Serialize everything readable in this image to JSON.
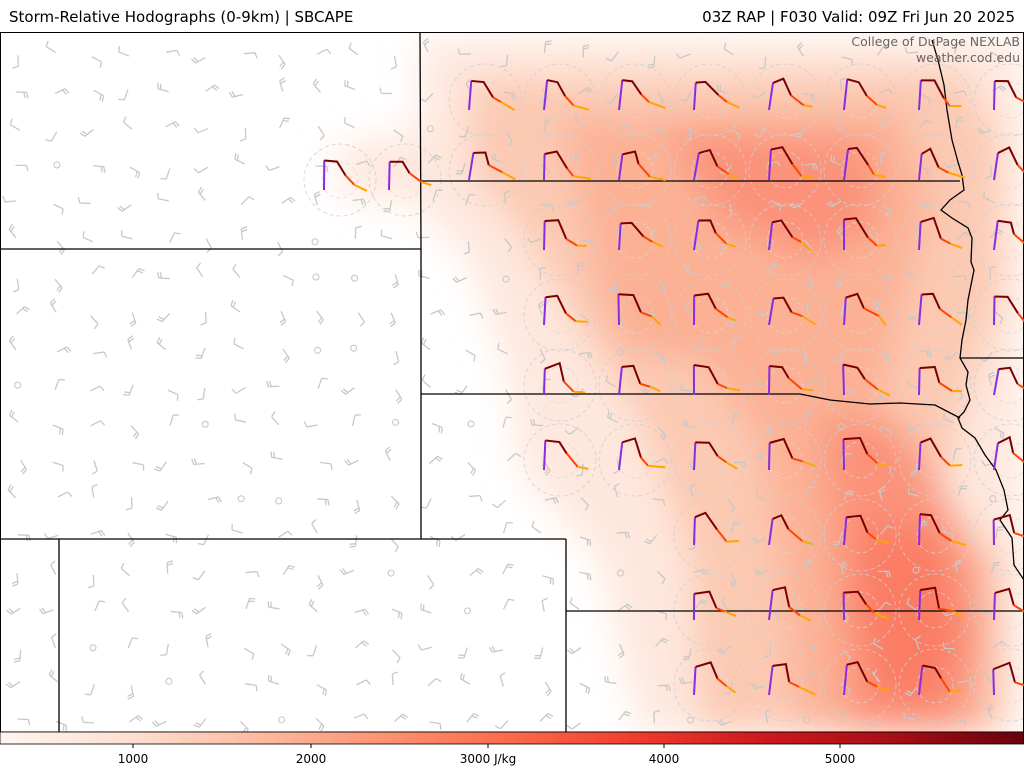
{
  "header": {
    "title_left": "Storm-Relative Hodographs (0-9km) | SBCAPE",
    "title_right": "03Z RAP | F030 Valid: 09Z Fri Jun 20 2025"
  },
  "credit": {
    "line1": "College of DuPage NEXLAB",
    "line2": "weather.cod.edu"
  },
  "colorbar": {
    "ticks": [
      "1000",
      "2000",
      "3000 J/kg",
      "4000",
      "5000"
    ],
    "colors": [
      "#fff5f0",
      "#fee0d2",
      "#fcbba1",
      "#fc9272",
      "#fb6a4a",
      "#ef3b2c",
      "#cb181d",
      "#a50f15",
      "#67000d"
    ]
  },
  "hodograph_colors": {
    "0-1km": "#8a2be2",
    "1-3km": "#7a0000",
    "3-6km": "#ff4500",
    "6-9km": "#ffa500"
  },
  "barb_color": "#c8c8c8",
  "border_color": "#000000"
}
